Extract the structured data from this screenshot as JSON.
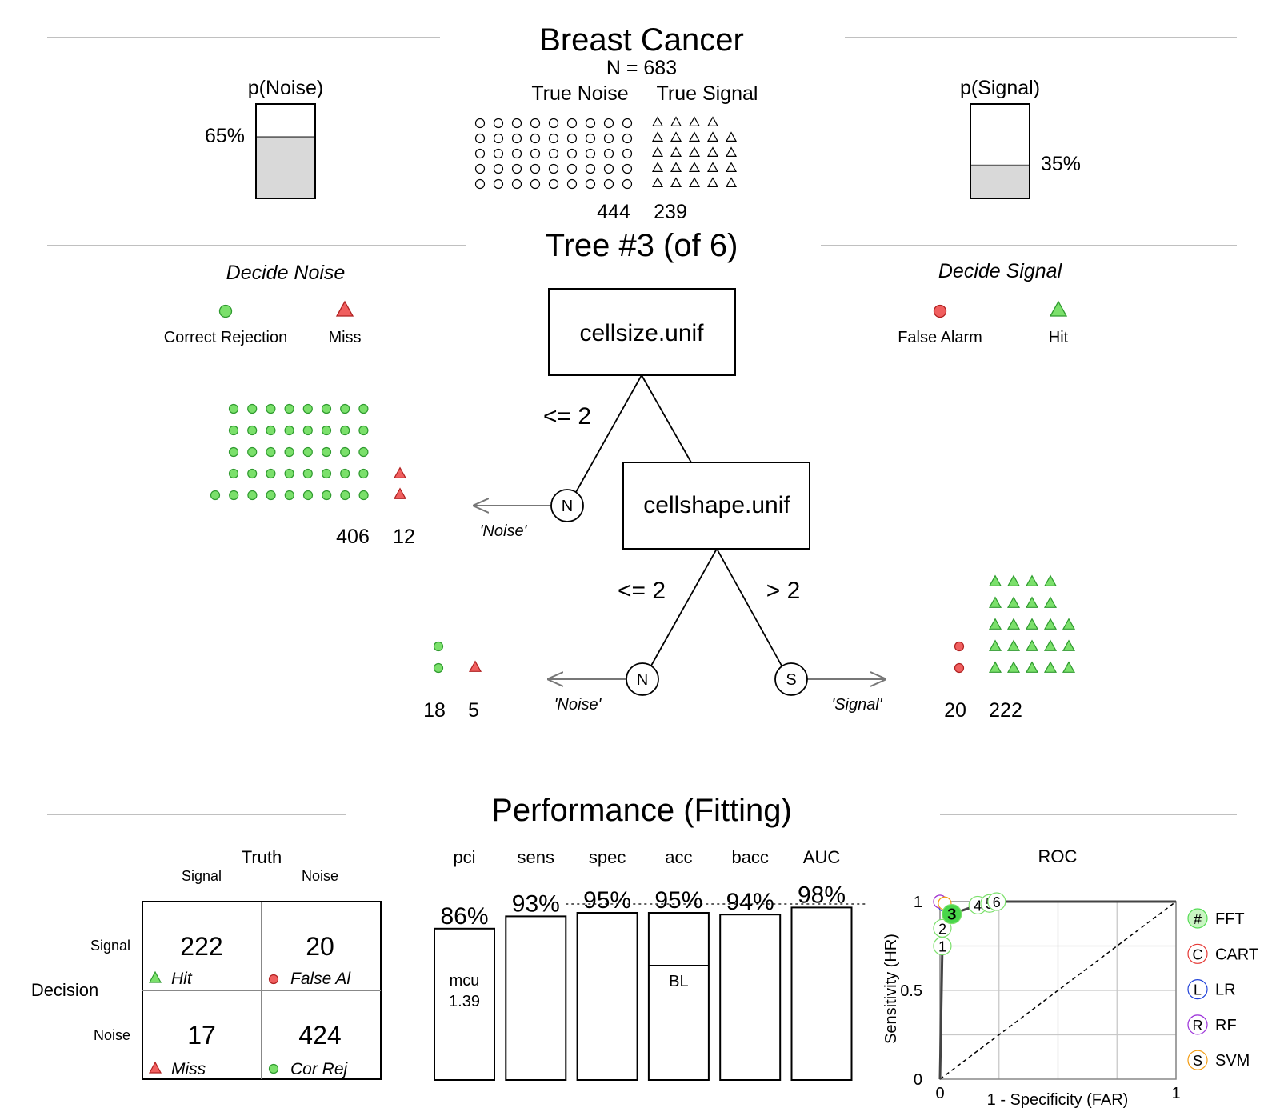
{
  "header": {
    "title": "Breast Cancer",
    "n_label": "N = 683",
    "true_noise_label": "True Noise",
    "true_signal_label": "True Signal",
    "true_noise_count": "444",
    "true_signal_count": "239",
    "p_noise_label": "p(Noise)",
    "p_noise_value": "65%",
    "p_noise_fraction": 0.65,
    "p_signal_label": "p(Signal)",
    "p_signal_value": "35%",
    "p_signal_fraction": 0.35
  },
  "tree": {
    "title": "Tree #3 (of 6)",
    "decide_noise_label": "Decide Noise",
    "decide_signal_label": "Decide Signal",
    "legend": {
      "correct_rejection": "Correct Rejection",
      "miss": "Miss",
      "false_alarm": "False Alarm",
      "hit": "Hit"
    },
    "node1": {
      "cue": "cellsize.unif",
      "exit_condition": "<= 2",
      "exit_marker": "N",
      "exit_label": "'Noise'",
      "cor_rej_count": "406",
      "miss_count": "12"
    },
    "node2": {
      "cue": "cellshape.unif",
      "noise_condition": "<= 2",
      "signal_condition": "> 2",
      "noise_marker": "N",
      "signal_marker": "S",
      "noise_label": "'Noise'",
      "signal_label": "'Signal'",
      "cor_rej_count": "18",
      "miss_count": "5",
      "false_alarm_count": "20",
      "hit_count": "222"
    }
  },
  "performance": {
    "title": "Performance (Fitting)",
    "confusion": {
      "truth_label": "Truth",
      "decision_label": "Decision",
      "col_signal": "Signal",
      "col_noise": "Noise",
      "row_signal": "Signal",
      "row_noise": "Noise",
      "hit_value": "222",
      "hit_label": "Hit",
      "false_alarm_value": "20",
      "false_alarm_label": "False Al",
      "miss_value": "17",
      "miss_label": "Miss",
      "cor_rej_value": "424",
      "cor_rej_label": "Cor Rej"
    },
    "bars": [
      {
        "name": "pci",
        "value": "86%",
        "fraction": 0.86
      },
      {
        "name": "sens",
        "value": "93%",
        "fraction": 0.93
      },
      {
        "name": "spec",
        "value": "95%",
        "fraction": 0.95
      },
      {
        "name": "acc",
        "value": "95%",
        "fraction": 0.95
      },
      {
        "name": "bacc",
        "value": "94%",
        "fraction": 0.94
      },
      {
        "name": "AUC",
        "value": "98%",
        "fraction": 0.98
      }
    ],
    "mcu_label": "mcu",
    "mcu_value": "1.39",
    "acc_baseline_label": "BL",
    "acc_baseline_fraction": 0.65
  },
  "roc": {
    "title": "ROC",
    "xlabel": "1 - Specificity (FAR)",
    "ylabel": "Sensitivity (HR)",
    "x_ticks": [
      "0",
      "1"
    ],
    "y_ticks": [
      "0",
      "0.5",
      "1"
    ],
    "legend": [
      {
        "symbol": "#",
        "label": "FFT",
        "color": "#55dd55"
      },
      {
        "symbol": "C",
        "label": "CART",
        "color": "#e53935"
      },
      {
        "symbol": "L",
        "label": "LR",
        "color": "#1e40d8"
      },
      {
        "symbol": "R",
        "label": "RF",
        "color": "#9b30d9"
      },
      {
        "symbol": "S",
        "label": "SVM",
        "color": "#f39c12"
      }
    ]
  },
  "chart_data": [
    {
      "type": "bar",
      "title": "Performance (Fitting)",
      "categories": [
        "pci",
        "sens",
        "spec",
        "acc",
        "bacc",
        "AUC"
      ],
      "values": [
        0.86,
        0.93,
        0.95,
        0.95,
        0.94,
        0.98
      ],
      "labels": [
        "86%",
        "93%",
        "95%",
        "95%",
        "94%",
        "98%"
      ],
      "ylim": [
        0,
        1
      ]
    },
    {
      "type": "scatter",
      "title": "ROC",
      "xlabel": "1 - Specificity (FAR)",
      "ylabel": "Sensitivity (HR)",
      "xlim": [
        0,
        1
      ],
      "ylim": [
        0,
        1
      ],
      "series": [
        {
          "name": "FFT",
          "points": [
            {
              "label": "1",
              "x": 0.01,
              "y": 0.75
            },
            {
              "label": "2",
              "x": 0.01,
              "y": 0.85
            },
            {
              "label": "3",
              "x": 0.05,
              "y": 0.93
            },
            {
              "label": "4",
              "x": 0.16,
              "y": 0.98
            },
            {
              "label": "5",
              "x": 0.21,
              "y": 0.99
            },
            {
              "label": "6",
              "x": 0.24,
              "y": 1.0
            }
          ]
        },
        {
          "name": "CART",
          "points": [
            {
              "x": 0.0,
              "y": 1.0
            }
          ]
        },
        {
          "name": "LR",
          "points": [
            {
              "x": 0.02,
              "y": 0.98
            }
          ]
        },
        {
          "name": "RF",
          "points": [
            {
              "x": 0.0,
              "y": 1.0
            }
          ]
        },
        {
          "name": "SVM",
          "points": [
            {
              "x": 0.02,
              "y": 0.99
            }
          ]
        }
      ],
      "diagonal": true,
      "grid": true
    }
  ]
}
